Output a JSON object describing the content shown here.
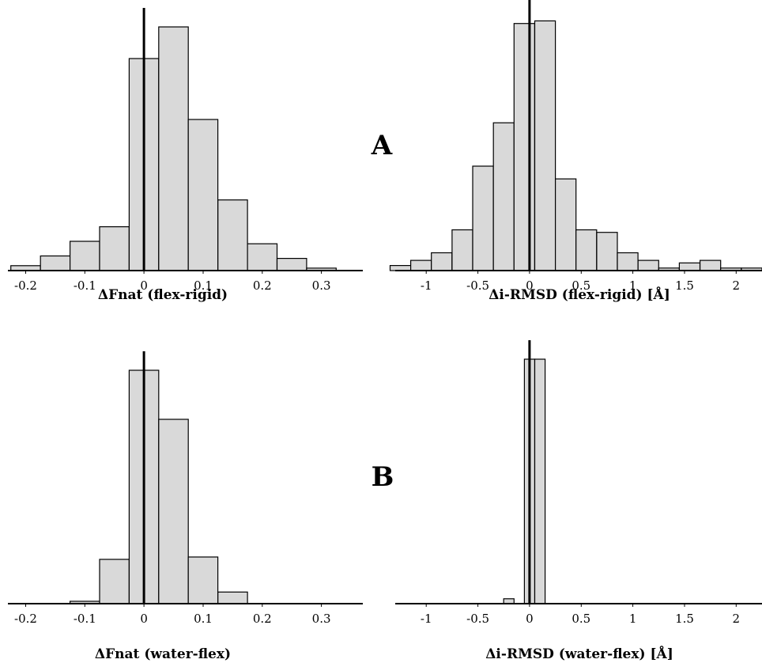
{
  "panel_labels": {
    "A": "A",
    "B": "B"
  },
  "chart_data": [
    {
      "type": "bar",
      "xlabel": "ΔFnat (flex-rigid)",
      "ylabel": "",
      "xlim": [
        -0.23,
        0.37
      ],
      "ylim": [
        0,
        1
      ],
      "xticks": [
        -0.2,
        -0.1,
        0,
        0.1,
        0.2,
        0.3
      ],
      "xtick_labels": [
        "-0.2",
        "-0.1",
        "0",
        "0.1",
        "0.2",
        "0.3"
      ],
      "bin_width": 0.05,
      "bin_starts": [
        -0.225,
        -0.175,
        -0.125,
        -0.075,
        -0.025,
        0.025,
        0.075,
        0.125,
        0.175,
        0.225,
        0.275
      ],
      "values": [
        0.02,
        0.06,
        0.12,
        0.18,
        0.87,
        1.0,
        0.62,
        0.29,
        0.11,
        0.05,
        0.01
      ]
    },
    {
      "type": "bar",
      "xlabel": "Δi-RMSD (flex-rigid) [Å]",
      "ylabel": "",
      "xlim": [
        -1.3,
        2.25
      ],
      "ylim": [
        0,
        1
      ],
      "xticks": [
        -1,
        -0.5,
        0,
        0.5,
        1,
        1.5,
        2
      ],
      "xtick_labels": [
        "-1",
        "-0.5",
        "0",
        "0.5",
        "1",
        "1.5",
        "2"
      ],
      "bin_width": 0.2,
      "bin_starts": [
        -1.35,
        -1.15,
        -0.95,
        -0.75,
        -0.55,
        -0.35,
        -0.15,
        0.05,
        0.25,
        0.45,
        0.65,
        0.85,
        1.05,
        1.25,
        1.45,
        1.65,
        1.85,
        2.05
      ],
      "values": [
        0.02,
        0.04,
        0.07,
        0.16,
        0.41,
        0.58,
        0.97,
        0.98,
        0.36,
        0.16,
        0.15,
        0.07,
        0.04,
        0.01,
        0.03,
        0.04,
        0.01,
        0.01
      ]
    },
    {
      "type": "bar",
      "xlabel": "ΔFnat (water-flex)",
      "ylabel": "",
      "xlim": [
        -0.23,
        0.37
      ],
      "ylim": [
        0,
        1
      ],
      "xticks": [
        -0.2,
        -0.1,
        0,
        0.1,
        0.2,
        0.3
      ],
      "xtick_labels": [
        "-0.2",
        "-0.1",
        "0",
        "0.1",
        "0.2",
        "0.3"
      ],
      "bin_width": 0.05,
      "bin_starts": [
        -0.125,
        -0.075,
        -0.025,
        0.025,
        0.075,
        0.125
      ],
      "values": [
        0.01,
        0.19,
        1.0,
        0.79,
        0.2,
        0.05
      ]
    },
    {
      "type": "bar",
      "xlabel": "Δi-RMSD (water-flex) [Å]",
      "ylabel": "",
      "xlim": [
        -1.3,
        2.25
      ],
      "ylim": [
        0,
        1
      ],
      "xticks": [
        -1,
        -0.5,
        0,
        0.5,
        1,
        1.5,
        2
      ],
      "xtick_labels": [
        "-1",
        "-0.5",
        "0",
        "0.5",
        "1",
        "1.5",
        "2"
      ],
      "bin_width": 0.1,
      "bin_starts": [
        -0.25,
        -0.05,
        0.05
      ],
      "values": [
        0.02,
        1.0,
        1.0
      ]
    }
  ]
}
